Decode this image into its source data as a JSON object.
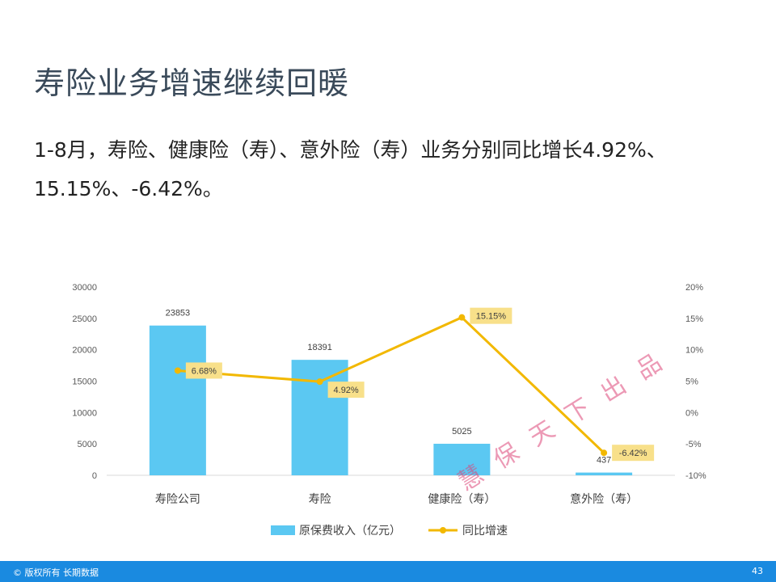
{
  "slide": {
    "title": "寿险业务增速继续回暖",
    "text": "1-8月，寿险、健康险（寿）、意外险（寿）业务分别同比增长4.92%、15.15%、-6.42%。"
  },
  "footer": {
    "copyright": "© 版权所有 长期数据",
    "page": "43"
  },
  "watermark": "慧保天下出品",
  "colors": {
    "bar": "#5bc8f2",
    "line": "#f2b800",
    "label_bg": "#f8e08a",
    "footer": "#1a8ae0"
  },
  "chart_data": {
    "type": "bar+line",
    "categories": [
      "寿险公司",
      "寿险",
      "健康险（寿）",
      "意外险（寿）"
    ],
    "series": [
      {
        "name": "原保费收入（亿元）",
        "type": "bar",
        "axis": "left",
        "values": [
          23853,
          18391,
          5025,
          437
        ],
        "labels": [
          "23853",
          "18391",
          "5025",
          "437"
        ]
      },
      {
        "name": "同比增速",
        "type": "line",
        "axis": "right",
        "values": [
          6.68,
          4.92,
          15.15,
          -6.42
        ],
        "labels": [
          "6.68%",
          "4.92%",
          "15.15%",
          "-6.42%"
        ]
      }
    ],
    "y_left": {
      "ylim": [
        0,
        30000
      ],
      "ticks": [
        "0",
        "5000",
        "10000",
        "15000",
        "20000",
        "25000",
        "30000"
      ]
    },
    "y_right": {
      "ylim": [
        -10,
        20
      ],
      "ticks": [
        "-10%",
        "-5%",
        "0%",
        "5%",
        "10%",
        "15%",
        "20%"
      ]
    },
    "legend": "bottom",
    "grid": false
  }
}
